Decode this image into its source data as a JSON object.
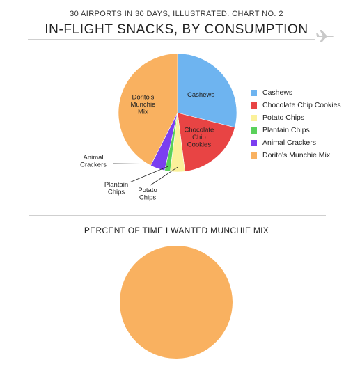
{
  "header": {
    "supertitle": "30 AIRPORTS IN 30 DAYS, ILLUSTRATED. CHART NO. 2",
    "title": "IN-FLIGHT SNACKS, BY CONSUMPTION",
    "icon": "airplane-icon"
  },
  "chart_data": [
    {
      "type": "pie",
      "title": "IN-FLIGHT SNACKS, BY CONSUMPTION",
      "categories": [
        "Cashews",
        "Chocolate Chip Cookies",
        "Potato Chips",
        "Plantain Chips",
        "Animal Crackers",
        "Dorito's Munchie Mix"
      ],
      "values": [
        29,
        19,
        4,
        1.5,
        4,
        42.5
      ],
      "colors": [
        "#6eb4f0",
        "#e84444",
        "#fbf19a",
        "#5ad15a",
        "#7b3ef0",
        "#f9b160"
      ],
      "slice_labels": [
        "Cashews",
        "Chocolate Chip Cookies",
        "Potato Chips",
        "Plantain Chips",
        "Animal Crackers",
        "Dorito's Munchie Mix"
      ],
      "legend": "right"
    },
    {
      "type": "pie",
      "title": "PERCENT OF TIME I WANTED MUNCHIE MIX",
      "categories": [
        "Munchie Mix"
      ],
      "values": [
        100
      ],
      "colors": [
        "#f9b160"
      ]
    }
  ]
}
